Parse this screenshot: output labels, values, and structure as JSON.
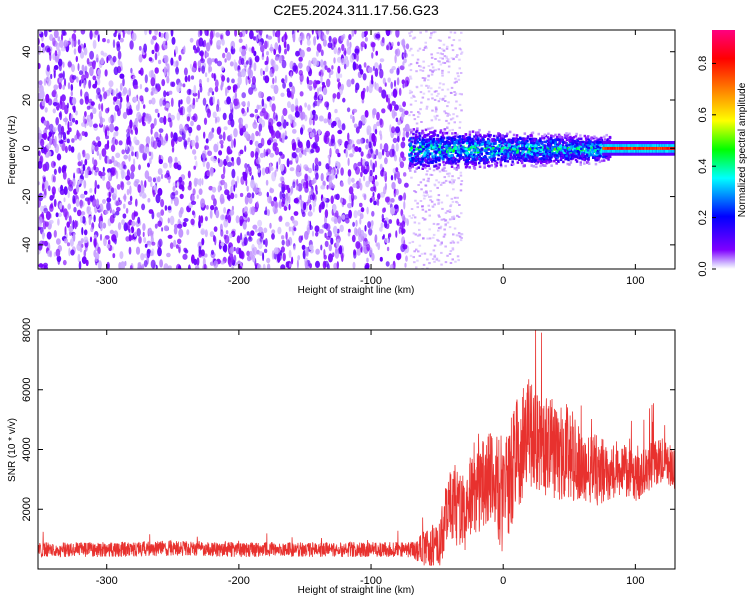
{
  "title": "C2E5.2024.311.17.56.G23",
  "chart_data": [
    {
      "type": "heatmap",
      "xlabel": "Height of straight line (km)",
      "ylabel": "Frequency (Hz)",
      "xlim": [
        -352,
        130
      ],
      "ylim": [
        -50,
        49
      ],
      "xticks": [
        -300,
        -200,
        -100,
        0,
        100
      ],
      "yticks": [
        -40,
        -20,
        0,
        20,
        40
      ],
      "colorbar": {
        "label": "Normalized spectral amplitude",
        "range": [
          0,
          0.93
        ],
        "ticks": [
          0.0,
          0.2,
          0.4,
          0.6,
          0.8
        ],
        "tick_labels": [
          "0.0",
          "0.2",
          "0.4",
          "0.6",
          "0.8"
        ],
        "colormap": [
          "#ffffff",
          "#7f00ff",
          "#0000ff",
          "#00ffff",
          "#00ff00",
          "#ffff00",
          "#ff8000",
          "#ff0000",
          "#ff0080"
        ]
      },
      "description_regions": [
        {
          "x_range": [
            -352,
            -72
          ],
          "frequency_range": [
            -50,
            49
          ],
          "amplitude": 0.05
        },
        {
          "x_range": [
            -72,
            80
          ],
          "frequency_range": [
            -10,
            12
          ],
          "amplitude": 0.35
        },
        {
          "x_range": [
            80,
            130
          ],
          "frequency_range": [
            -1,
            1
          ],
          "amplitude": 0.85
        }
      ]
    },
    {
      "type": "line",
      "xlabel": "Height of straight line (km)",
      "ylabel": "SNR (10 * v/v)",
      "xlim": [
        -352,
        130
      ],
      "ylim": [
        0,
        8000
      ],
      "xticks": [
        -300,
        -200,
        -100,
        0,
        100
      ],
      "yticks": [
        2000,
        4000,
        6000,
        8000
      ],
      "color": "#e8312e",
      "series": [
        {
          "x": [
            -352,
            -300,
            -250,
            -200,
            -150,
            -100,
            -70,
            -50,
            -40,
            -30,
            -20,
            -10,
            0,
            10,
            20,
            30,
            40,
            50,
            60,
            70,
            80,
            90,
            100,
            110,
            120,
            130
          ],
          "y": [
            650,
            650,
            700,
            650,
            650,
            650,
            650,
            700,
            2200,
            1800,
            2800,
            3100,
            2300,
            3900,
            4500,
            4200,
            3900,
            4000,
            3300,
            3300,
            3300,
            3400,
            3000,
            3400,
            3600,
            3400
          ],
          "noise": [
            250,
            250,
            260,
            250,
            250,
            250,
            260,
            900,
            1200,
            1400,
            1700,
            1700,
            1800,
            1900,
            1900,
            1700,
            1700,
            1600,
            1400,
            1200,
            1000,
            900,
            800,
            800,
            800,
            800
          ]
        }
      ]
    }
  ]
}
